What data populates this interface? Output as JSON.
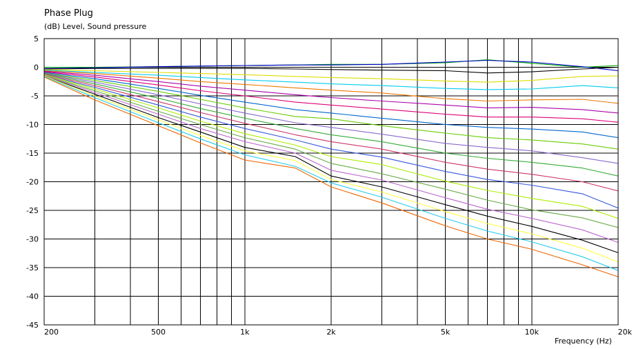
{
  "chart_data": {
    "type": "line",
    "title": "Phase Plug",
    "ylabel": "(dB)  Level, Sound pressure",
    "xlabel": "Frequency  (Hz)",
    "xscale": "log",
    "xlim": [
      200,
      20000
    ],
    "ylim": [
      -45,
      5
    ],
    "grid": true,
    "y_ticks": [
      "5",
      "0",
      "-5",
      "-10",
      "-15",
      "-20",
      "-25",
      "-30",
      "-35",
      "-40",
      "-45"
    ],
    "y_tick_values": [
      5,
      0,
      -5,
      -10,
      -15,
      -20,
      -25,
      -30,
      -35,
      -40,
      -45
    ],
    "x_ticks": [
      "200",
      "500",
      "1k",
      "2k",
      "5k",
      "10k",
      "20k"
    ],
    "x_tick_values": [
      200,
      500,
      1000,
      2000,
      5000,
      10000,
      20000
    ],
    "x_grid_values": [
      200,
      300,
      400,
      500,
      600,
      700,
      800,
      900,
      1000,
      2000,
      3000,
      4000,
      5000,
      6000,
      7000,
      8000,
      9000,
      10000,
      20000
    ],
    "x": [
      200,
      300,
      500,
      700,
      1000,
      1500,
      2000,
      3000,
      5000,
      7000,
      10000,
      15000,
      20000
    ],
    "series": [
      {
        "color": "#00AA00",
        "values": [
          0.0,
          0.0,
          0.1,
          0.2,
          0.3,
          0.4,
          0.5,
          0.5,
          0.8,
          1.3,
          0.7,
          0.0,
          0.3
        ]
      },
      {
        "color": "#0000CC",
        "values": [
          -0.2,
          -0.1,
          0.1,
          0.2,
          0.3,
          0.4,
          0.4,
          0.5,
          0.9,
          1.2,
          0.9,
          0.1,
          -0.6
        ]
      },
      {
        "color": "#000000",
        "values": [
          -0.3,
          -0.2,
          -0.2,
          -0.2,
          -0.2,
          -0.3,
          -0.4,
          -0.5,
          -0.6,
          -1.0,
          -0.8,
          -0.3,
          0.0
        ]
      },
      {
        "color": "#DDDD00",
        "values": [
          -0.4,
          -0.6,
          -0.9,
          -1.1,
          -1.3,
          -1.6,
          -1.8,
          -2.0,
          -2.4,
          -2.6,
          -2.3,
          -1.6,
          -1.5
        ]
      },
      {
        "color": "#00CCEE",
        "values": [
          -0.5,
          -0.9,
          -1.4,
          -1.8,
          -2.2,
          -2.6,
          -2.9,
          -3.2,
          -3.7,
          -3.9,
          -3.8,
          -3.2,
          -3.6
        ]
      },
      {
        "color": "#EE7700",
        "values": [
          -0.6,
          -1.1,
          -1.9,
          -2.5,
          -3.0,
          -3.6,
          -4.0,
          -4.5,
          -5.5,
          -5.9,
          -5.7,
          -5.6,
          -6.3
        ]
      },
      {
        "color": "#AA00AA",
        "values": [
          -0.7,
          -1.4,
          -2.5,
          -3.3,
          -4.0,
          -4.8,
          -5.3,
          -5.9,
          -6.6,
          -7.1,
          -7.0,
          -7.4,
          -8.0
        ]
      },
      {
        "color": "#DD0077",
        "values": [
          -0.8,
          -1.7,
          -3.1,
          -4.1,
          -5.0,
          -6.1,
          -6.6,
          -7.3,
          -8.2,
          -8.7,
          -8.7,
          -9.0,
          -9.6
        ]
      },
      {
        "color": "#0066CC",
        "values": [
          -0.9,
          -2.0,
          -3.7,
          -4.9,
          -6.1,
          -7.4,
          -8.0,
          -8.9,
          -10.0,
          -10.5,
          -10.8,
          -11.3,
          -12.3
        ]
      },
      {
        "color": "#66CC00",
        "values": [
          -1.0,
          -2.3,
          -4.2,
          -5.6,
          -7.1,
          -8.6,
          -9.0,
          -10.2,
          -11.5,
          -12.3,
          -12.7,
          -13.4,
          -14.3
        ]
      },
      {
        "color": "#8866CC",
        "values": [
          -1.0,
          -2.6,
          -4.8,
          -6.4,
          -8.0,
          -9.7,
          -10.5,
          -11.7,
          -13.3,
          -14.0,
          -14.6,
          -15.8,
          -16.8
        ]
      },
      {
        "color": "#33AA33",
        "values": [
          -1.1,
          -2.9,
          -5.4,
          -7.2,
          -8.9,
          -10.7,
          -11.8,
          -13.0,
          -15.0,
          -15.9,
          -16.6,
          -17.6,
          -19.0
        ]
      },
      {
        "color": "#CC3366",
        "values": [
          -1.2,
          -3.2,
          -6.0,
          -7.9,
          -9.8,
          -11.8,
          -13.0,
          -14.3,
          -16.6,
          -17.8,
          -18.7,
          -20.0,
          -21.6
        ]
      },
      {
        "color": "#3355DD",
        "values": [
          -1.3,
          -3.5,
          -6.6,
          -8.7,
          -10.7,
          -12.7,
          -14.3,
          -15.7,
          -18.2,
          -19.6,
          -20.6,
          -22.1,
          -24.6
        ]
      },
      {
        "color": "#AAEE00",
        "values": [
          -1.3,
          -3.8,
          -7.1,
          -9.4,
          -11.6,
          -13.6,
          -15.6,
          -17.0,
          -19.9,
          -21.5,
          -22.9,
          -24.3,
          -26.4
        ]
      },
      {
        "color": "#66AA44",
        "values": [
          -1.4,
          -4.1,
          -7.7,
          -10.0,
          -12.3,
          -14.3,
          -16.8,
          -18.6,
          -21.3,
          -23.2,
          -24.9,
          -26.3,
          -28.0
        ]
      },
      {
        "color": "#BB66CC",
        "values": [
          -1.4,
          -4.4,
          -8.2,
          -10.7,
          -13.0,
          -15.0,
          -18.0,
          -19.7,
          -22.8,
          -24.8,
          -26.4,
          -28.4,
          -30.6
        ]
      },
      {
        "color": "#000000",
        "values": [
          -1.5,
          -4.7,
          -8.8,
          -11.3,
          -14.0,
          -15.6,
          -19.0,
          -20.9,
          -24.0,
          -26.0,
          -27.8,
          -30.2,
          -32.4
        ]
      },
      {
        "color": "#FFFF44",
        "values": [
          -1.5,
          -5.0,
          -9.2,
          -11.9,
          -14.6,
          -16.3,
          -19.6,
          -21.8,
          -25.2,
          -27.3,
          -29.1,
          -31.6,
          -34.0
        ]
      },
      {
        "color": "#22CCEE",
        "values": [
          -1.6,
          -5.3,
          -9.7,
          -12.5,
          -15.3,
          -17.3,
          -20.2,
          -22.7,
          -26.4,
          -28.6,
          -30.5,
          -33.1,
          -35.5
        ]
      },
      {
        "color": "#EE6600",
        "values": [
          -1.7,
          -5.7,
          -10.2,
          -13.2,
          -16.2,
          -17.6,
          -20.9,
          -23.7,
          -27.7,
          -30.0,
          -31.8,
          -34.5,
          -36.6
        ]
      }
    ]
  }
}
